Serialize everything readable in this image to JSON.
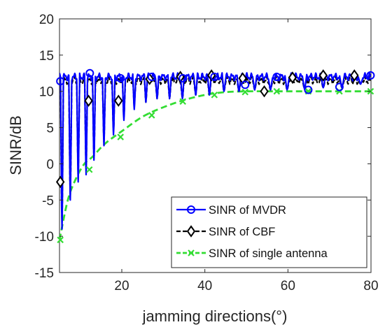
{
  "chart_data": {
    "type": "line",
    "title": "",
    "xlabel": "jamming directions(°)",
    "ylabel": "SINR/dB",
    "xlim": [
      5,
      80
    ],
    "ylim": [
      -15,
      20
    ],
    "xticks": [
      20,
      40,
      60,
      80
    ],
    "yticks": [
      -15,
      -10,
      -5,
      0,
      5,
      10,
      15,
      20
    ],
    "grid": false,
    "legend_position": "bottom-right",
    "series": [
      {
        "name": "SINR of MVDR",
        "color": "#0000ff",
        "line": "solid",
        "marker": "circle",
        "baseline": 12.0,
        "notches": [
          [
            5.6,
            -9.0
          ],
          [
            7.6,
            -5.0
          ],
          [
            9.5,
            -2.5
          ],
          [
            11.4,
            -1.5
          ],
          [
            13.3,
            0.5
          ],
          [
            15.7,
            2.5
          ],
          [
            18.0,
            4.0
          ],
          [
            20.5,
            6.0
          ],
          [
            23.0,
            7.5
          ],
          [
            25.8,
            8.5
          ],
          [
            28.5,
            9.0
          ],
          [
            31.5,
            9.0
          ],
          [
            34.6,
            9.0
          ],
          [
            37.8,
            9.5
          ],
          [
            41.1,
            9.5
          ],
          [
            44.6,
            10.0
          ],
          [
            48.2,
            10.0
          ],
          [
            52.0,
            10.2
          ],
          [
            55.8,
            10.2
          ],
          [
            59.8,
            10.2
          ],
          [
            64.0,
            10.3
          ],
          [
            68.5,
            10.5
          ],
          [
            73.0,
            10.5
          ],
          [
            77.5,
            11.0
          ]
        ],
        "markers": [
          [
            5.2,
            11.4
          ],
          [
            12.3,
            12.5
          ],
          [
            19.7,
            11.8
          ],
          [
            27.2,
            12.0
          ],
          [
            34.7,
            11.8
          ],
          [
            42.3,
            12.0
          ],
          [
            49.7,
            10.9
          ],
          [
            57.3,
            12.0
          ],
          [
            64.9,
            10.2
          ],
          [
            72.4,
            10.6
          ],
          [
            79.9,
            12.2
          ]
        ]
      },
      {
        "name": "SINR of CBF",
        "color": "#000000",
        "line": "dashed",
        "marker": "diamond",
        "baseline": 11.5,
        "notches": [
          [
            5.6,
            -8.0
          ],
          [
            7.6,
            -4.5
          ],
          [
            9.5,
            -1.5
          ],
          [
            11.4,
            -0.5
          ],
          [
            13.3,
            1.0
          ],
          [
            15.7,
            3.0
          ],
          [
            18.0,
            4.5
          ],
          [
            20.5,
            6.5
          ],
          [
            23.0,
            8.0
          ],
          [
            25.8,
            8.5
          ],
          [
            28.5,
            9.0
          ],
          [
            31.5,
            9.0
          ],
          [
            34.6,
            9.0
          ],
          [
            37.8,
            9.5
          ],
          [
            41.1,
            9.5
          ],
          [
            44.6,
            10.0
          ],
          [
            48.2,
            10.0
          ],
          [
            52.0,
            10.2
          ],
          [
            55.8,
            10.2
          ],
          [
            59.8,
            10.2
          ],
          [
            64.0,
            10.3
          ],
          [
            68.5,
            10.5
          ],
          [
            73.0,
            10.5
          ],
          [
            77.5,
            11.0
          ]
        ],
        "markers": [
          [
            5.2,
            -2.5
          ],
          [
            12.0,
            8.7
          ],
          [
            19.2,
            8.7
          ],
          [
            26.7,
            11.7
          ],
          [
            34.1,
            12.0
          ],
          [
            41.6,
            12.2
          ],
          [
            49.1,
            11.8
          ],
          [
            54.3,
            10.0
          ],
          [
            61.1,
            11.9
          ],
          [
            68.5,
            12.2
          ],
          [
            76.0,
            12.2
          ]
        ]
      },
      {
        "name": "SINR of single antenna",
        "color": "#33dd33",
        "line": "dashed",
        "marker": "x",
        "x": [
          5,
          7,
          9,
          11,
          13,
          16,
          20,
          25,
          30,
          35,
          40,
          45,
          50,
          55,
          60,
          65,
          70,
          75,
          80
        ],
        "y": [
          -10.5,
          -5.0,
          -2.0,
          0.0,
          1.0,
          2.8,
          4.5,
          6.5,
          7.8,
          8.8,
          9.5,
          9.9,
          10.0,
          10.0,
          10.0,
          10.0,
          10.0,
          10.0,
          10.0
        ],
        "markers": [
          [
            5.2,
            -10.5
          ],
          [
            12.2,
            -0.8
          ],
          [
            19.7,
            3.7
          ],
          [
            27.2,
            6.7
          ],
          [
            34.7,
            8.6
          ],
          [
            42.3,
            9.5
          ],
          [
            49.7,
            9.9
          ],
          [
            57.3,
            10.0
          ],
          [
            64.9,
            10.0
          ],
          [
            72.4,
            10.0
          ],
          [
            79.9,
            10.0
          ]
        ]
      }
    ]
  }
}
